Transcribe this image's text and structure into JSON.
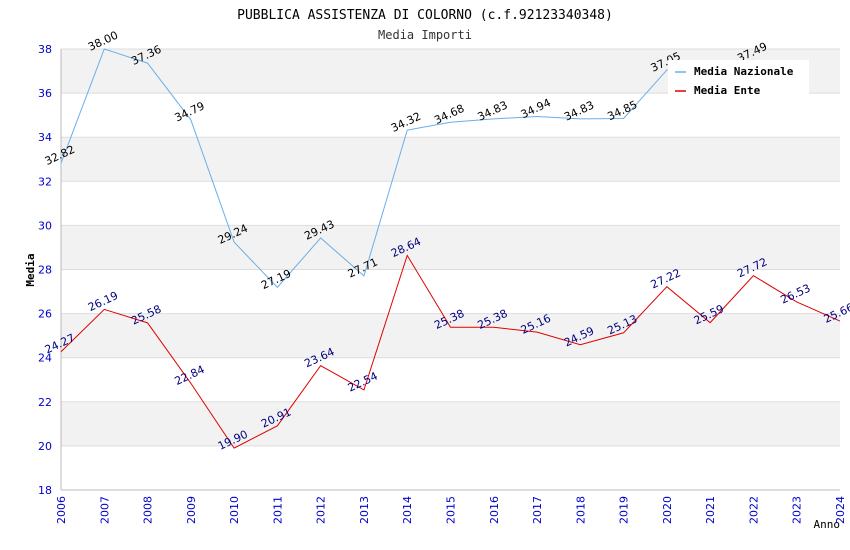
{
  "chart_data": {
    "type": "line",
    "title": "PUBBLICA ASSISTENZA DI COLORNO (c.f.92123340348)",
    "subtitle": "Media Importi",
    "xlabel": "Anno",
    "ylabel": "Media",
    "ylim": [
      18,
      38
    ],
    "yticks": [
      18,
      20,
      22,
      24,
      26,
      28,
      30,
      32,
      34,
      36,
      38
    ],
    "x": [
      "2006",
      "2007",
      "2008",
      "2009",
      "2010",
      "2011",
      "2012",
      "2013",
      "2014",
      "2015",
      "2016",
      "2017",
      "2018",
      "2019",
      "2020",
      "2021",
      "2022",
      "2023",
      "2024"
    ],
    "legend_position": "top-right",
    "series": [
      {
        "name": "Media Nazionale",
        "color": "#6aaee8",
        "label_color": "#000000",
        "values": [
          32.82,
          38.0,
          37.36,
          34.79,
          29.24,
          27.19,
          29.43,
          27.71,
          34.32,
          34.68,
          34.83,
          34.94,
          34.83,
          34.85,
          37.05,
          null,
          37.49,
          null,
          null
        ],
        "labels": [
          "32.82",
          "38.00",
          "37.36",
          "34.79",
          "29.24",
          "27.19",
          "29.43",
          "27.71",
          "34.32",
          "34.68",
          "34.83",
          "34.94",
          "34.83",
          "34.85",
          "37.05",
          "",
          "37.49",
          "",
          ""
        ]
      },
      {
        "name": "Media Ente",
        "color": "#e00000",
        "label_color": "#000080",
        "values": [
          24.27,
          26.19,
          25.58,
          22.84,
          19.9,
          20.91,
          23.64,
          22.54,
          28.64,
          25.38,
          25.38,
          25.16,
          24.59,
          25.13,
          27.22,
          25.59,
          27.72,
          26.53,
          25.66
        ],
        "labels": [
          "24.27",
          "26.19",
          "25.58",
          "22.84",
          "19.90",
          "20.91",
          "23.64",
          "22.54",
          "28.64",
          "25.38",
          "25.38",
          "25.16",
          "24.59",
          "25.13",
          "27.22",
          "25.59",
          "27.72",
          "26.53",
          "25.66"
        ]
      }
    ]
  }
}
